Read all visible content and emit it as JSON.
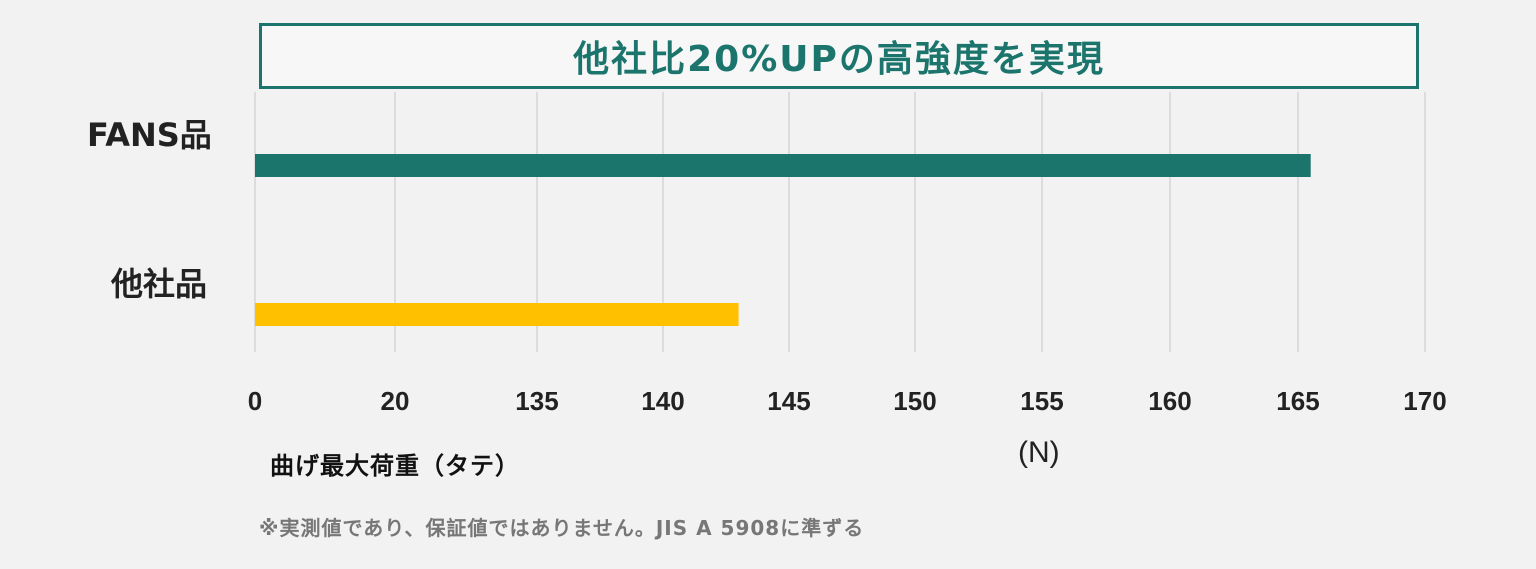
{
  "chart_data": {
    "type": "bar",
    "orientation": "horizontal",
    "title": "他社比20%UPの高強度を実現",
    "categories": [
      "FANS品",
      "他社品"
    ],
    "values": [
      165.5,
      143
    ],
    "colors": [
      "#1b756c",
      "#ffc000"
    ],
    "xticks": [
      "0",
      "20",
      "135",
      "140",
      "145",
      "150",
      "155",
      "160",
      "165",
      "170"
    ],
    "xlabel": "曲げ最大荷重（タテ）",
    "unit": "(N)",
    "grid": true
  },
  "note": "※実測値であり、保証値ではありません。JIS A 5908に準ずる"
}
